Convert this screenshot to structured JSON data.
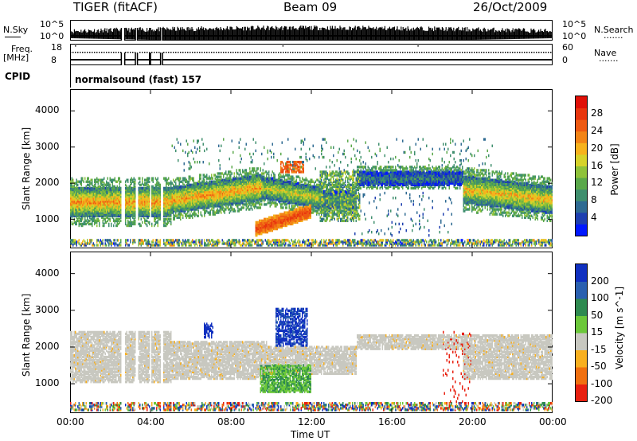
{
  "header": {
    "title": "TIGER (fitACF)",
    "beam": "Beam 09",
    "date": "26/Oct/2009"
  },
  "sidebar_left": {
    "nsky": "N.Sky",
    "nsky_ticks": [
      "10^5",
      "10^0"
    ],
    "freq": "Freq.",
    "freq_unit": "[MHz]",
    "freq_ticks": [
      "18",
      "8"
    ],
    "cpid": "CPID"
  },
  "sidebar_right": {
    "nsearch": "N.Search",
    "nsearch_ticks": [
      "10^5",
      "10^0"
    ],
    "nave": "Nave",
    "nave_ticks": [
      "60",
      "0"
    ]
  },
  "cpid_value": "normalsound (fast) 157",
  "chart_data": [
    {
      "type": "heatmap",
      "name": "power-panel",
      "ylabel": "Slant Range [km]",
      "yticks": [
        "4000",
        "3000",
        "2000",
        "1000"
      ],
      "yvalues": [
        4000,
        3000,
        2000,
        1000
      ],
      "ylim": [
        200,
        4600
      ],
      "xlim": [
        0,
        24
      ],
      "colorbar": {
        "label": "Power [dB]",
        "ticks": [
          "28",
          "24",
          "20",
          "16",
          "12",
          "8",
          "4"
        ],
        "tick_values": [
          28,
          24,
          20,
          16,
          12,
          8,
          4
        ],
        "range": [
          0,
          32
        ],
        "colors": [
          "#0018ff",
          "#1e3fb0",
          "#2e6a92",
          "#3f8f6e",
          "#5aa84a",
          "#8fc23a",
          "#d6d22a",
          "#f6b21c",
          "#f28416",
          "#ee5a12",
          "#e8360e",
          "#e01008"
        ]
      }
    },
    {
      "type": "heatmap",
      "name": "velocity-panel",
      "ylabel": "Slant Range [km]",
      "yticks": [
        "4000",
        "3000",
        "2000",
        "1000"
      ],
      "yvalues": [
        4000,
        3000,
        2000,
        1000
      ],
      "ylim": [
        200,
        4600
      ],
      "xlim": [
        0,
        24
      ],
      "colorbar": {
        "label": "Velocity [m s^-1]",
        "ticks": [
          "200",
          "100",
          "50",
          "15",
          "-15",
          "-50",
          "-100",
          "-200"
        ],
        "colors": [
          "#1030c0",
          "#2a60b0",
          "#2e8a50",
          "#6cc83a",
          "#c8c8c0",
          "#f8b020",
          "#f07010",
          "#e82010"
        ]
      }
    }
  ],
  "xaxis": {
    "label": "Time UT",
    "ticks": [
      "00:00",
      "04:00",
      "08:00",
      "12:00",
      "16:00",
      "20:00",
      "00:00"
    ],
    "tick_hours": [
      0,
      4,
      8,
      12,
      16,
      20,
      24
    ]
  },
  "legend_dots": "......."
}
